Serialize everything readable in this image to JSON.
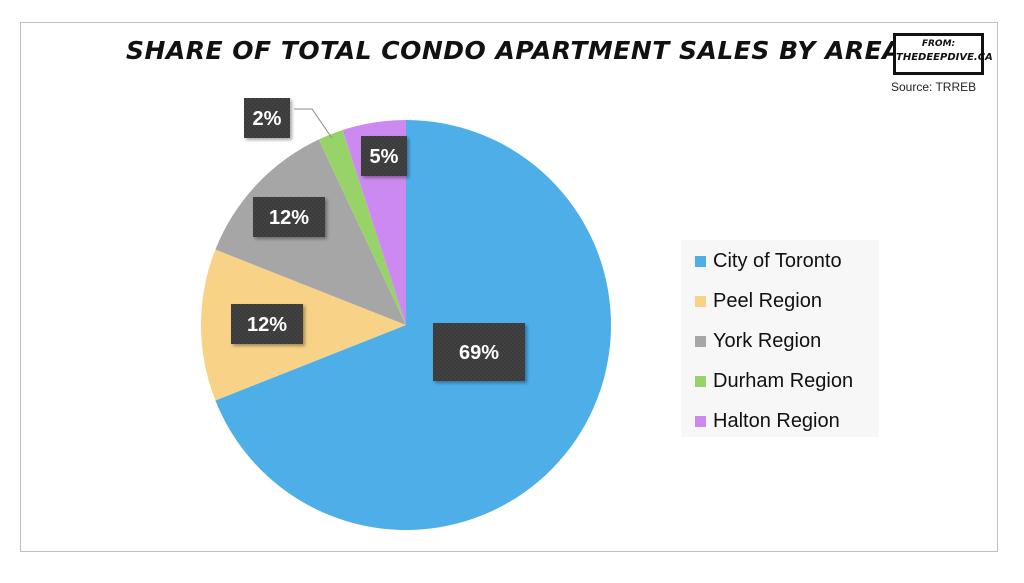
{
  "chart_data": {
    "type": "pie",
    "title": "Share of Total Condo Apartment Sales by Area",
    "source": "Source: TRREB",
    "badge": {
      "line1": "From:",
      "line2": "TheDeepDive.ca"
    },
    "legend_position": "right",
    "slices": [
      {
        "label": "City of Toronto",
        "value": 69,
        "display": "69%",
        "color": "#4daee8"
      },
      {
        "label": "Peel Region",
        "value": 12,
        "display": "12%",
        "color": "#f8d286"
      },
      {
        "label": "York Region",
        "value": 12,
        "display": "12%",
        "color": "#a6a6a6"
      },
      {
        "label": "Durham Region",
        "value": 2,
        "display": "2%",
        "color": "#98d36a"
      },
      {
        "label": "Halton Region",
        "value": 5,
        "display": "5%",
        "color": "#cc8af0"
      }
    ]
  }
}
